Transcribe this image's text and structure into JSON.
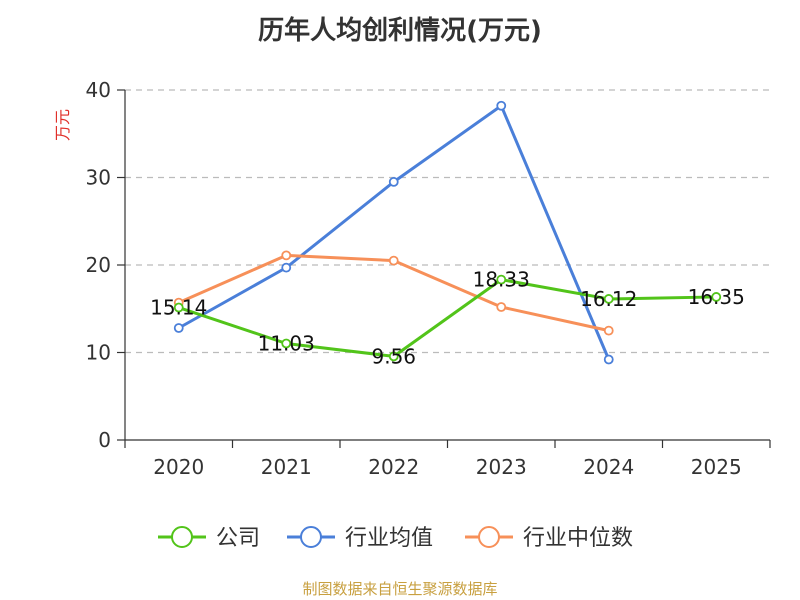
{
  "chart_data": {
    "type": "line",
    "title": "历年人均创利情况(万元)",
    "ylabel": "万元",
    "xlabel": "",
    "categories": [
      "2020",
      "2021",
      "2022",
      "2023",
      "2024",
      "2025"
    ],
    "ylim": [
      0,
      40
    ],
    "yticks": [
      0,
      10,
      20,
      30,
      40
    ],
    "grid": true,
    "legend_position": "bottom",
    "series": [
      {
        "name": "公司",
        "color": "#52c41a",
        "values": [
          15.14,
          11.03,
          9.56,
          18.33,
          16.12,
          16.35
        ],
        "labels": [
          "15.14",
          "11.03",
          "9.56",
          "18.33",
          "16.12",
          "16.35"
        ]
      },
      {
        "name": "行业均值",
        "color": "#4a7fd9",
        "values": [
          12.8,
          19.7,
          29.5,
          38.2,
          9.2,
          null
        ]
      },
      {
        "name": "行业中位数",
        "color": "#f79059",
        "values": [
          15.7,
          21.1,
          20.5,
          15.2,
          12.5,
          null
        ]
      }
    ]
  },
  "footer": "制图数据来自恒生聚源数据库"
}
